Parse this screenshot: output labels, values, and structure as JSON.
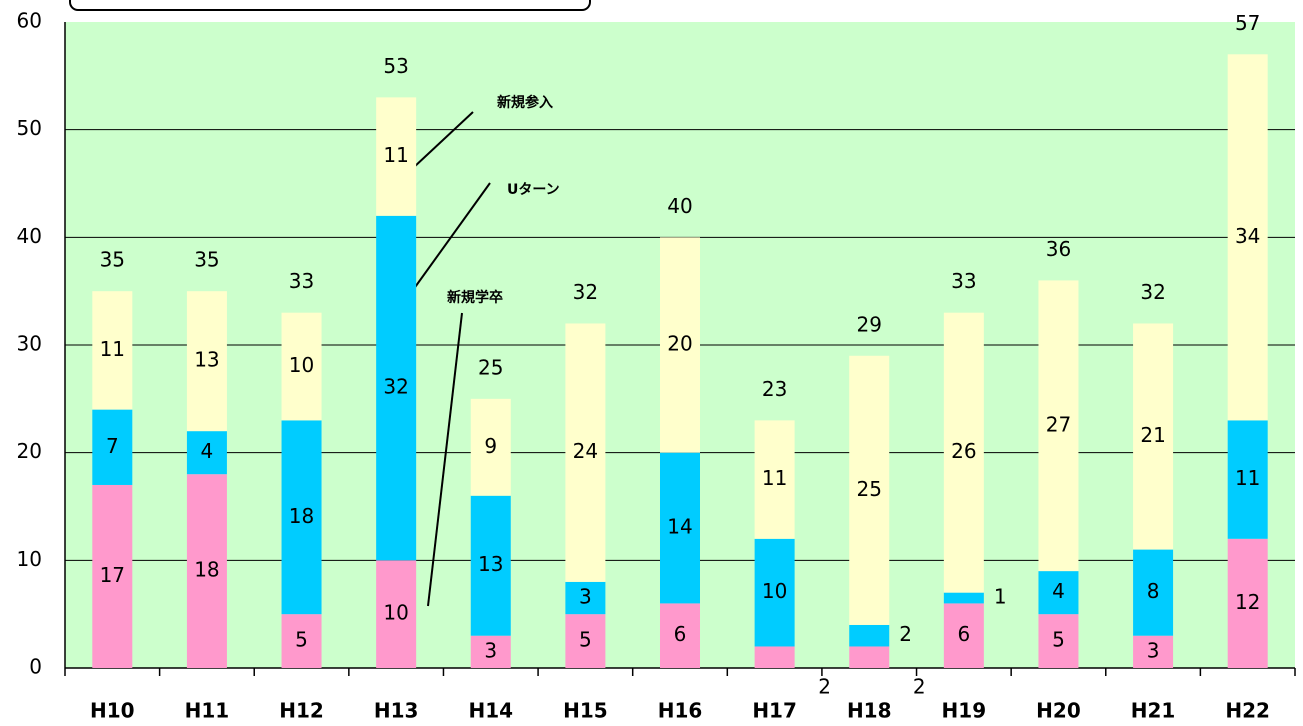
{
  "chart_data": {
    "type": "stacked_bar",
    "categories": [
      "H10",
      "H11",
      "H12",
      "H13",
      "H14",
      "H15",
      "H16",
      "H17",
      "H18",
      "H19",
      "H20",
      "H21",
      "H22"
    ],
    "series": [
      {
        "name": "新規学卒",
        "color": "#ff99cc",
        "values": [
          17,
          18,
          5,
          10,
          3,
          5,
          6,
          2,
          2,
          6,
          5,
          3,
          12
        ]
      },
      {
        "name": "Uターン",
        "color": "#00ccff",
        "values": [
          7,
          4,
          18,
          32,
          13,
          3,
          14,
          10,
          2,
          1,
          4,
          8,
          11
        ]
      },
      {
        "name": "新規参入",
        "color": "#ffffcc",
        "values": [
          11,
          13,
          10,
          11,
          9,
          24,
          20,
          11,
          25,
          26,
          27,
          21,
          34
        ]
      }
    ],
    "totals": [
      35,
      35,
      33,
      53,
      25,
      32,
      40,
      23,
      29,
      33,
      36,
      32,
      57
    ],
    "ylim": [
      0,
      60
    ],
    "yticks": [
      0,
      10,
      20,
      30,
      40,
      50,
      60
    ],
    "grid": true
  }
}
